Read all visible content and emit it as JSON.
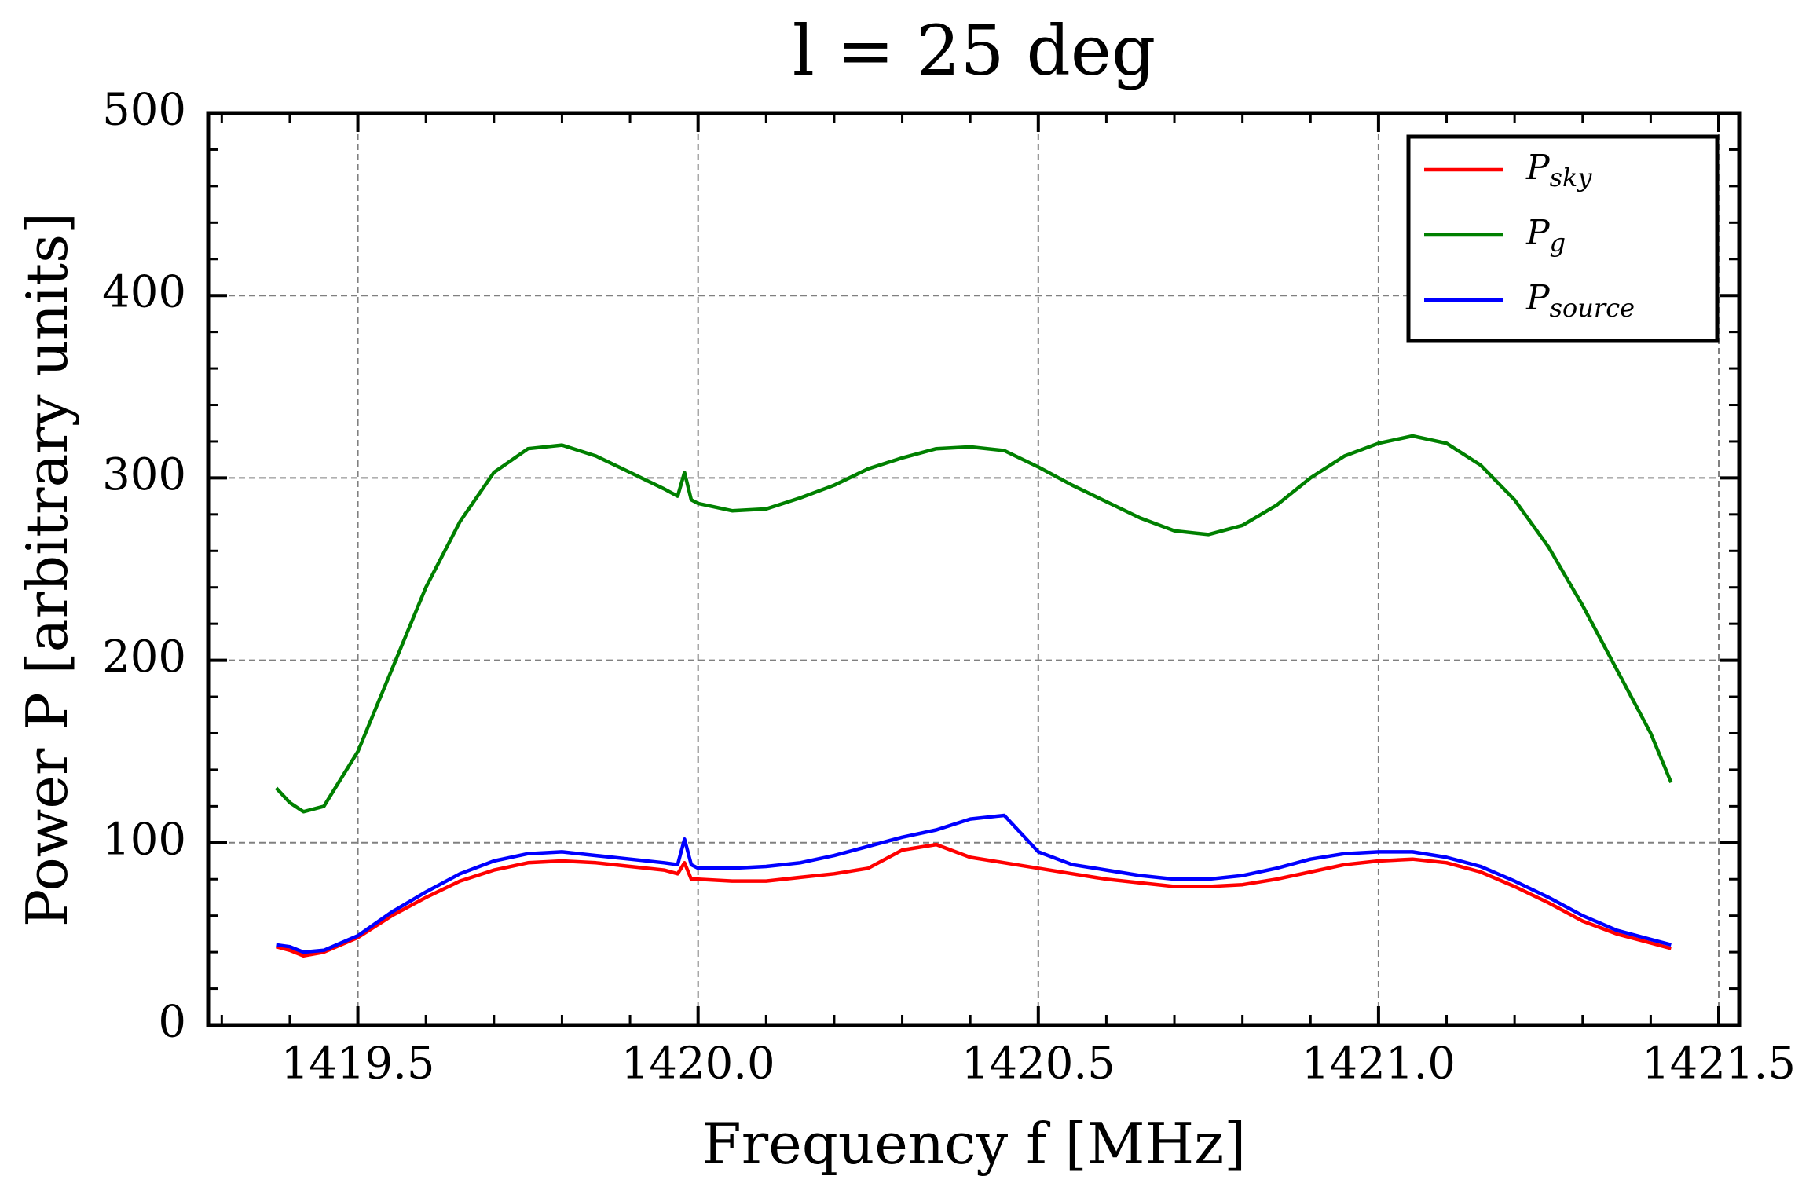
{
  "chart_data": {
    "type": "line",
    "title": "l = 25 deg",
    "xlabel": "Frequency f [MHz]",
    "ylabel": "Power P [arbitrary units]",
    "x": [
      1419.38,
      1419.4,
      1419.42,
      1419.45,
      1419.5,
      1419.55,
      1419.6,
      1419.65,
      1419.7,
      1419.75,
      1419.8,
      1419.85,
      1419.9,
      1419.95,
      1419.97,
      1419.98,
      1419.99,
      1420.0,
      1420.05,
      1420.1,
      1420.15,
      1420.2,
      1420.25,
      1420.3,
      1420.35,
      1420.4,
      1420.45,
      1420.5,
      1420.55,
      1420.6,
      1420.65,
      1420.7,
      1420.75,
      1420.8,
      1420.85,
      1420.9,
      1420.95,
      1421.0,
      1421.05,
      1421.1,
      1421.15,
      1421.2,
      1421.25,
      1421.3,
      1421.35,
      1421.4,
      1421.43
    ],
    "series": [
      {
        "name": "Psky",
        "color": "#ff0000",
        "values": [
          43,
          41,
          38,
          40,
          48,
          60,
          70,
          79,
          85,
          89,
          90,
          89,
          87,
          85,
          83,
          89,
          80,
          80,
          79,
          79,
          81,
          83,
          86,
          96,
          99,
          92,
          89,
          86,
          83,
          80,
          78,
          76,
          76,
          77,
          80,
          84,
          88,
          90,
          91,
          89,
          84,
          76,
          67,
          57,
          50,
          45,
          42
        ]
      },
      {
        "name": "Pg",
        "color": "#008000",
        "values": [
          130,
          122,
          117,
          120,
          150,
          195,
          240,
          276,
          303,
          316,
          318,
          312,
          303,
          294,
          290,
          303,
          288,
          286,
          282,
          283,
          289,
          296,
          305,
          311,
          316,
          317,
          315,
          306,
          296,
          287,
          278,
          271,
          269,
          274,
          285,
          300,
          312,
          319,
          323,
          319,
          307,
          288,
          262,
          230,
          195,
          160,
          133
        ]
      },
      {
        "name": "Psource",
        "color": "#0000ff",
        "values": [
          44,
          43,
          40,
          41,
          49,
          62,
          73,
          83,
          90,
          94,
          95,
          93,
          91,
          89,
          88,
          102,
          88,
          86,
          86,
          87,
          89,
          93,
          98,
          103,
          107,
          113,
          115,
          95,
          88,
          85,
          82,
          80,
          80,
          82,
          86,
          91,
          94,
          95,
          95,
          92,
          87,
          79,
          70,
          60,
          52,
          47,
          44
        ]
      }
    ],
    "xlim": [
      1419.28,
      1421.53
    ],
    "ylim": [
      0,
      500
    ],
    "xticks": [
      1419.5,
      {
        "value": 1420,
        "label": "1420.0"
      },
      1420.5,
      {
        "value": 1421,
        "label": "1421.0"
      },
      1421.5
    ],
    "yticks": [
      0,
      100,
      200,
      300,
      400,
      500
    ],
    "xminorticks": [
      1419.3,
      1419.4,
      1419.6,
      1419.7,
      1419.8,
      1419.9,
      1420.1,
      1420.2,
      1420.3,
      1420.4,
      1420.6,
      1420.7,
      1420.8,
      1420.9,
      1421.1,
      1421.2,
      1421.3,
      1421.4
    ],
    "yminorticks": [
      20,
      40,
      60,
      80,
      120,
      140,
      160,
      180,
      220,
      240,
      260,
      280,
      320,
      340,
      360,
      380,
      420,
      440,
      460,
      480
    ],
    "grid": true,
    "legend": "upper right"
  }
}
